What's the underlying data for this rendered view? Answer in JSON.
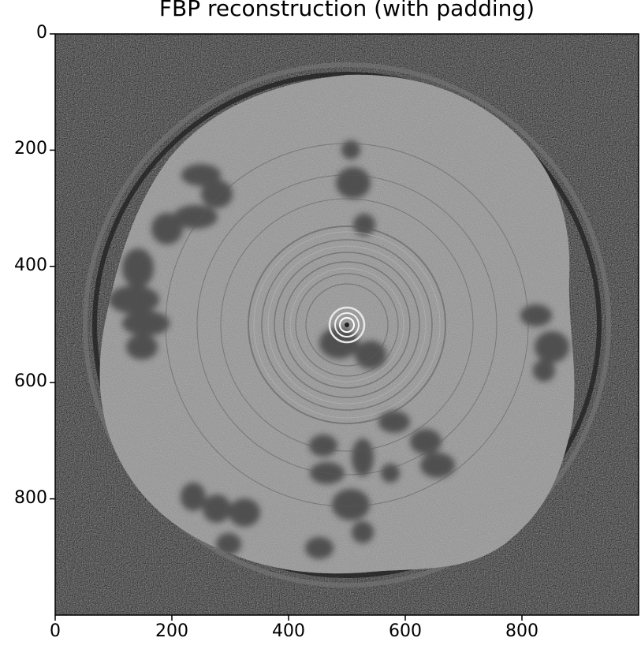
{
  "figure": {
    "title": "FBP reconstruction (with padding)",
    "colormap": "gray",
    "image_extent": [
      0,
      1000,
      1000,
      0
    ],
    "x_ticks": [
      {
        "value": 0,
        "label": "0"
      },
      {
        "value": 200,
        "label": "200"
      },
      {
        "value": 400,
        "label": "400"
      },
      {
        "value": 600,
        "label": "600"
      },
      {
        "value": 800,
        "label": "800"
      }
    ],
    "y_ticks": [
      {
        "value": 0,
        "label": "0"
      },
      {
        "value": 200,
        "label": "200"
      },
      {
        "value": 400,
        "label": "400"
      },
      {
        "value": 600,
        "label": "600"
      },
      {
        "value": 800,
        "label": "800"
      }
    ],
    "colors": {
      "background_dark": "#2a2a2a",
      "disc_fill": "#8a8a8a",
      "frame": "#000000"
    }
  }
}
